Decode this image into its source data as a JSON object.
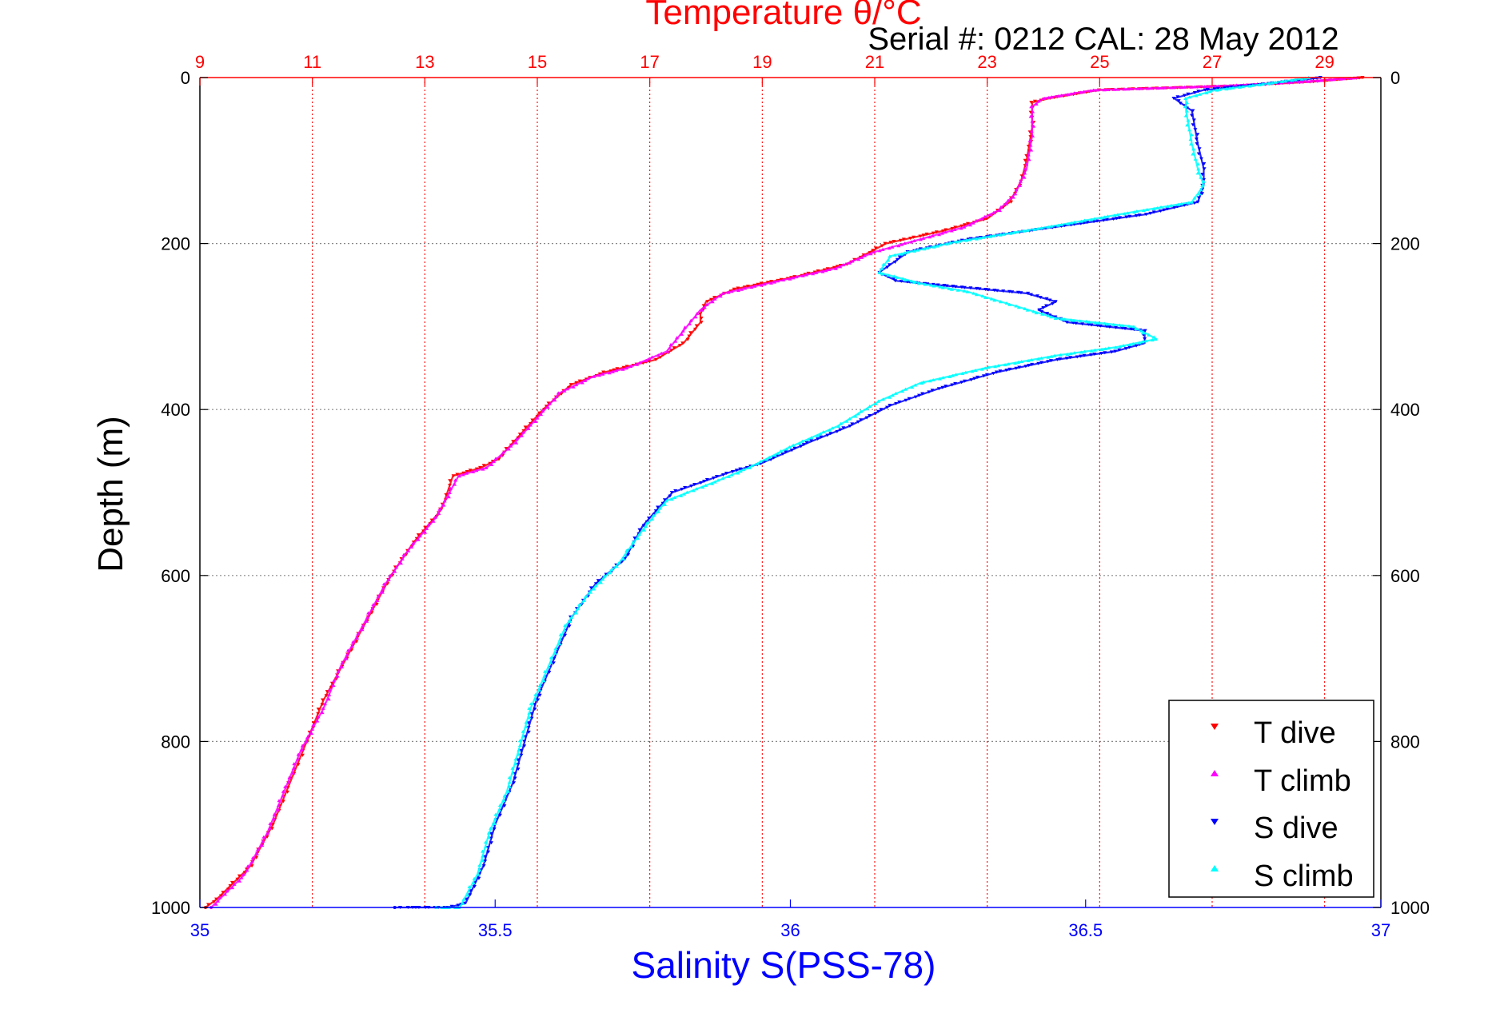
{
  "chart_data": {
    "type": "scatter",
    "title": "Temperature θ/°C",
    "subtitle": "Serial #: 0212  CAL: 28 May 2012",
    "ylabel": "Depth (m)",
    "xlabel_bottom": "Salinity S(PSS-78)",
    "xlabel_top": "Temperature θ/°C",
    "ylim": [
      0,
      1000
    ],
    "y_reversed": true,
    "y_ticks": [
      0,
      200,
      400,
      600,
      800,
      1000
    ],
    "x_bottom_lim": [
      35,
      37
    ],
    "x_bottom_ticks": [
      "35",
      "35.5",
      "36",
      "36.5",
      "37"
    ],
    "x_top_lim": [
      9,
      30
    ],
    "x_top_ticks": [
      "9",
      "11",
      "13",
      "15",
      "17",
      "19",
      "21",
      "23",
      "25",
      "27",
      "29"
    ],
    "colors": {
      "temp_axis": "#ff0000",
      "sal_axis": "#0000ff",
      "t_dive": "#ff0000",
      "t_climb": "#ff00ff",
      "s_dive": "#0000ff",
      "s_climb": "#00ffff",
      "grid": "#888888"
    },
    "legend": {
      "placement": "bottom-right",
      "entries": [
        "T dive",
        "T climb",
        "S dive",
        "S climb"
      ]
    },
    "series": [
      {
        "name": "T dive",
        "axis": "temperature",
        "marker": "triangle-down",
        "points": [
          [
            29.7,
            0
          ],
          [
            28.8,
            5
          ],
          [
            27.5,
            10
          ],
          [
            25.0,
            15
          ],
          [
            24.1,
            25
          ],
          [
            23.8,
            30
          ],
          [
            23.8,
            60
          ],
          [
            23.7,
            100
          ],
          [
            23.6,
            125
          ],
          [
            23.4,
            150
          ],
          [
            23.0,
            170
          ],
          [
            22.2,
            185
          ],
          [
            21.2,
            200
          ],
          [
            20.5,
            225
          ],
          [
            19.6,
            240
          ],
          [
            18.5,
            255
          ],
          [
            18.0,
            270
          ],
          [
            17.9,
            285
          ],
          [
            17.9,
            295
          ],
          [
            17.6,
            320
          ],
          [
            17.1,
            340
          ],
          [
            16.2,
            355
          ],
          [
            15.6,
            370
          ],
          [
            15.1,
            400
          ],
          [
            14.7,
            430
          ],
          [
            14.3,
            460
          ],
          [
            14.0,
            470
          ],
          [
            13.5,
            480
          ],
          [
            13.3,
            520
          ],
          [
            12.8,
            560
          ],
          [
            12.4,
            600
          ],
          [
            12.0,
            650
          ],
          [
            11.6,
            700
          ],
          [
            11.2,
            750
          ],
          [
            10.9,
            800
          ],
          [
            10.6,
            850
          ],
          [
            10.3,
            900
          ],
          [
            9.9,
            950
          ],
          [
            9.3,
            990
          ],
          [
            9.1,
            1000
          ]
        ]
      },
      {
        "name": "T climb",
        "axis": "temperature",
        "marker": "triangle-up",
        "points": [
          [
            29.6,
            0
          ],
          [
            28.6,
            5
          ],
          [
            27.2,
            10
          ],
          [
            24.9,
            15
          ],
          [
            24.0,
            25
          ],
          [
            23.8,
            35
          ],
          [
            23.8,
            70
          ],
          [
            23.7,
            110
          ],
          [
            23.5,
            140
          ],
          [
            23.2,
            160
          ],
          [
            22.6,
            180
          ],
          [
            21.8,
            195
          ],
          [
            21.0,
            210
          ],
          [
            20.3,
            230
          ],
          [
            19.3,
            245
          ],
          [
            18.3,
            260
          ],
          [
            17.9,
            280
          ],
          [
            17.6,
            305
          ],
          [
            17.3,
            330
          ],
          [
            16.6,
            350
          ],
          [
            16.0,
            360
          ],
          [
            15.4,
            380
          ],
          [
            15.0,
            410
          ],
          [
            14.6,
            440
          ],
          [
            14.1,
            470
          ],
          [
            13.6,
            480
          ],
          [
            13.2,
            530
          ],
          [
            12.7,
            570
          ],
          [
            12.3,
            610
          ],
          [
            11.9,
            660
          ],
          [
            11.5,
            710
          ],
          [
            11.2,
            760
          ],
          [
            10.8,
            810
          ],
          [
            10.5,
            860
          ],
          [
            10.2,
            910
          ],
          [
            9.8,
            960
          ],
          [
            9.2,
            1000
          ]
        ]
      },
      {
        "name": "S dive",
        "axis": "salinity",
        "marker": "triangle-down",
        "points": [
          [
            36.9,
            0
          ],
          [
            36.8,
            8
          ],
          [
            36.7,
            15
          ],
          [
            36.65,
            25
          ],
          [
            36.68,
            40
          ],
          [
            36.69,
            80
          ],
          [
            36.7,
            110
          ],
          [
            36.7,
            130
          ],
          [
            36.69,
            150
          ],
          [
            36.6,
            165
          ],
          [
            36.45,
            180
          ],
          [
            36.3,
            195
          ],
          [
            36.2,
            210
          ],
          [
            36.15,
            235
          ],
          [
            36.18,
            245
          ],
          [
            36.25,
            250
          ],
          [
            36.4,
            260
          ],
          [
            36.45,
            270
          ],
          [
            36.42,
            280
          ],
          [
            36.47,
            295
          ],
          [
            36.6,
            305
          ],
          [
            36.6,
            320
          ],
          [
            36.55,
            330
          ],
          [
            36.45,
            340
          ],
          [
            36.35,
            355
          ],
          [
            36.25,
            375
          ],
          [
            36.17,
            395
          ],
          [
            36.1,
            420
          ],
          [
            36.03,
            440
          ],
          [
            35.95,
            465
          ],
          [
            35.9,
            475
          ],
          [
            35.8,
            500
          ],
          [
            35.75,
            540
          ],
          [
            35.72,
            580
          ],
          [
            35.67,
            610
          ],
          [
            35.63,
            650
          ],
          [
            35.6,
            700
          ],
          [
            35.57,
            750
          ],
          [
            35.55,
            800
          ],
          [
            35.53,
            850
          ],
          [
            35.5,
            900
          ],
          [
            35.48,
            950
          ],
          [
            35.45,
            995
          ],
          [
            35.42,
            1000
          ],
          [
            35.35,
            1000
          ],
          [
            35.33,
            1000
          ]
        ]
      },
      {
        "name": "S climb",
        "axis": "salinity",
        "marker": "triangle-up",
        "points": [
          [
            36.88,
            0
          ],
          [
            36.8,
            8
          ],
          [
            36.72,
            15
          ],
          [
            36.67,
            25
          ],
          [
            36.67,
            40
          ],
          [
            36.68,
            80
          ],
          [
            36.69,
            110
          ],
          [
            36.7,
            130
          ],
          [
            36.68,
            150
          ],
          [
            36.58,
            162
          ],
          [
            36.42,
            182
          ],
          [
            36.28,
            198
          ],
          [
            36.17,
            215
          ],
          [
            36.15,
            235
          ],
          [
            36.22,
            248
          ],
          [
            36.3,
            258
          ],
          [
            36.38,
            275
          ],
          [
            36.45,
            290
          ],
          [
            36.58,
            300
          ],
          [
            36.62,
            315
          ],
          [
            36.55,
            325
          ],
          [
            36.45,
            335
          ],
          [
            36.33,
            350
          ],
          [
            36.22,
            368
          ],
          [
            36.15,
            390
          ],
          [
            36.08,
            420
          ],
          [
            36.0,
            445
          ],
          [
            35.93,
            470
          ],
          [
            35.88,
            485
          ],
          [
            35.79,
            510
          ],
          [
            35.75,
            545
          ],
          [
            35.71,
            585
          ],
          [
            35.66,
            620
          ],
          [
            35.62,
            660
          ],
          [
            35.59,
            710
          ],
          [
            35.56,
            760
          ],
          [
            35.54,
            810
          ],
          [
            35.52,
            860
          ],
          [
            35.49,
            910
          ],
          [
            35.47,
            960
          ],
          [
            35.44,
            1000
          ],
          [
            35.4,
            1000
          ]
        ]
      }
    ]
  }
}
